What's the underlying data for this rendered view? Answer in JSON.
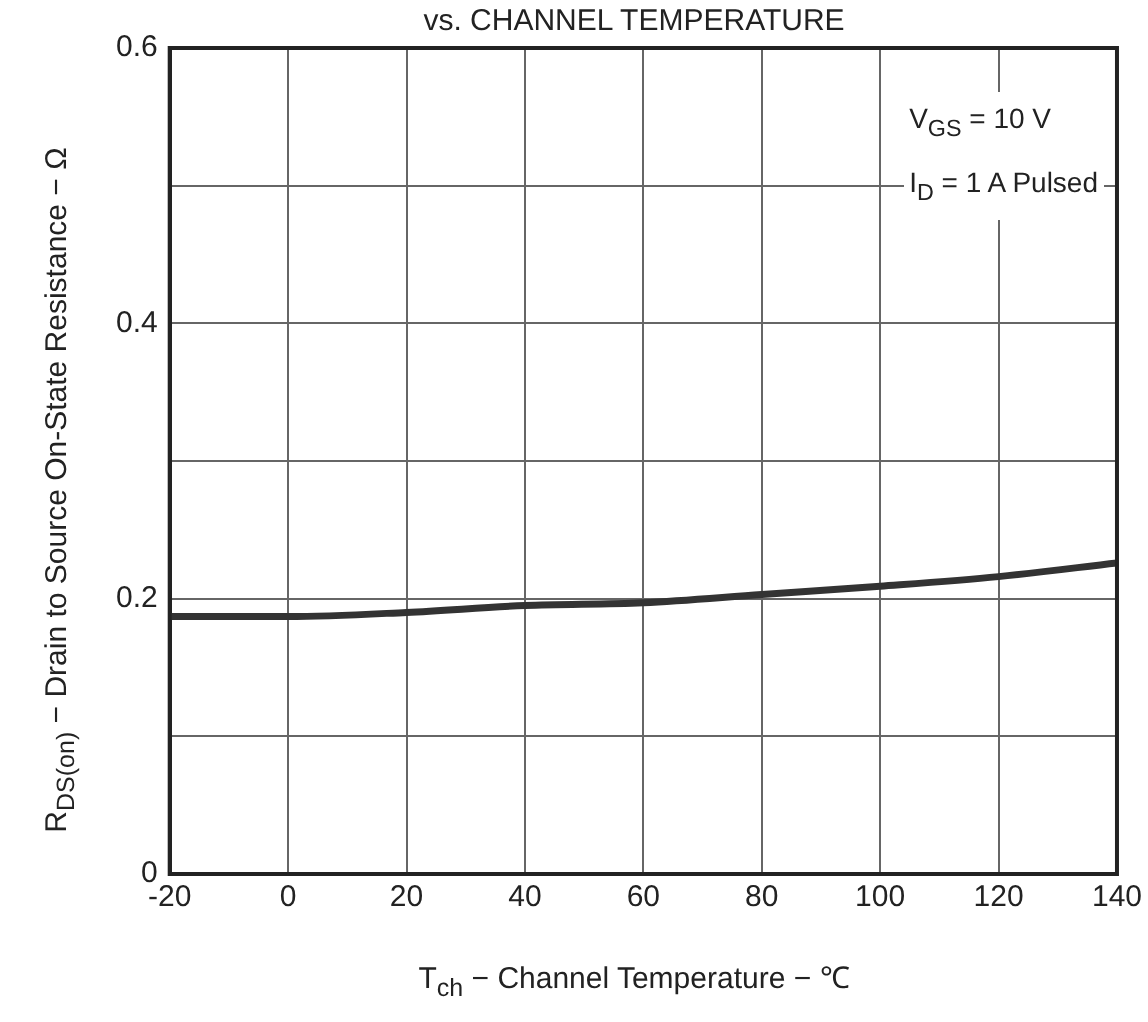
{
  "chart_data": {
    "type": "line",
    "title": "vs. CHANNEL TEMPERATURE",
    "xlabel": "T$_{ch}$ − Channel Temperature − ℃",
    "ylabel": "R$_{DS(on)}$ − Drain to Source On-State Resistance − Ω",
    "annotations": [
      "V$_{GS}$ = 10 V",
      "I$_{D}$ = 1 A   Pulsed"
    ],
    "x": [
      -20,
      0,
      20,
      40,
      60,
      80,
      100,
      120,
      140
    ],
    "series": [
      {
        "color": "#333333",
        "values": [
          0.187,
          0.187,
          0.19,
          0.195,
          0.197,
          0.203,
          0.209,
          0.216,
          0.226
        ]
      }
    ],
    "xlim": [
      -20,
      140
    ],
    "xticks": [
      -20,
      0,
      20,
      40,
      60,
      80,
      100,
      120,
      140
    ],
    "ylim": [
      0,
      0.6
    ],
    "yticks": [
      0,
      {
        "value": 0.1,
        "label": null
      },
      0.2,
      {
        "value": 0.3,
        "label": null
      },
      0.4,
      {
        "value": 0.5,
        "label": null
      },
      0.6
    ],
    "grid": true,
    "legend": false,
    "marker": "none",
    "line_style": "solid"
  }
}
